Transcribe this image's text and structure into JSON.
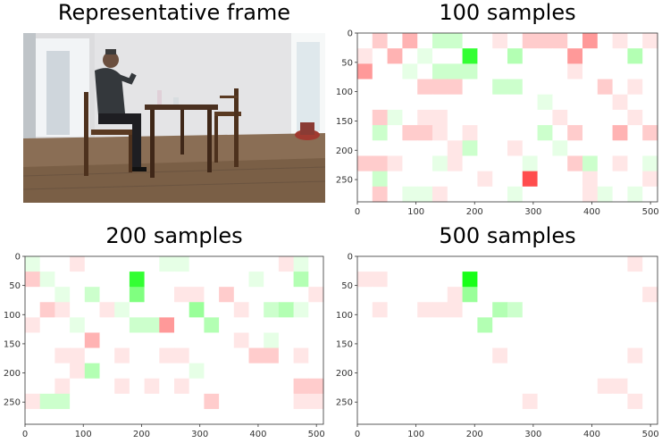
{
  "titles": {
    "frame": "Representative frame",
    "p100": "100 samples",
    "p200": "200 samples",
    "p500": "500 samples"
  },
  "colors": {
    "positive": "#00ff00",
    "negative": "#ff0000",
    "neutral": "#ffffff"
  },
  "chart_data": [
    {
      "type": "heatmap",
      "title": "100 samples",
      "x_range": [
        0,
        512
      ],
      "y_range": [
        0,
        288
      ],
      "x_ticks": [
        "0",
        "100",
        "200",
        "300",
        "400",
        "500"
      ],
      "y_ticks": [
        "0",
        "50",
        "100",
        "150",
        "200",
        "250"
      ],
      "grid_rows": 11,
      "grid_cols": 20,
      "values": [
        [
          0,
          -0.2,
          0,
          -0.3,
          0,
          0.2,
          0.2,
          0,
          0,
          -0.1,
          0,
          -0.2,
          -0.2,
          -0.2,
          0,
          -0.4,
          0,
          -0.1,
          0,
          -0.1
        ],
        [
          -0.1,
          0,
          -0.3,
          0,
          0.1,
          0,
          0,
          0.8,
          0,
          0,
          0.3,
          0,
          0,
          0,
          -0.4,
          0,
          0,
          0,
          0.3,
          0
        ],
        [
          -0.4,
          0,
          0,
          0.1,
          0,
          0.2,
          0.2,
          0.2,
          0,
          0,
          0,
          0,
          0,
          0,
          -0.1,
          0,
          0,
          0,
          0,
          0
        ],
        [
          0,
          0,
          0,
          0,
          -0.2,
          -0.2,
          -0.2,
          0,
          0,
          0.2,
          0.2,
          0,
          0,
          0,
          0,
          0,
          -0.2,
          0,
          -0.1,
          0
        ],
        [
          0,
          0,
          0,
          0,
          0,
          0,
          0,
          0,
          0,
          0,
          0,
          0,
          0.1,
          0,
          0,
          0,
          0,
          -0.1,
          0,
          0
        ],
        [
          0,
          -0.2,
          0.1,
          0,
          -0.1,
          -0.1,
          0,
          0,
          0,
          0,
          0,
          0,
          0,
          -0.1,
          0,
          0,
          0,
          0,
          -0.1,
          0
        ],
        [
          0,
          0.2,
          0,
          -0.2,
          -0.2,
          -0.1,
          0,
          -0.1,
          0,
          0,
          0,
          0,
          0.2,
          0,
          -0.2,
          0,
          0,
          -0.3,
          0,
          -0.2
        ],
        [
          0,
          0,
          0,
          0,
          0,
          0,
          -0.1,
          0.2,
          0,
          0,
          -0.1,
          0,
          0,
          0.1,
          0,
          0,
          0,
          0,
          0,
          0
        ],
        [
          -0.2,
          -0.2,
          -0.1,
          0,
          0,
          0.1,
          -0.1,
          0,
          0,
          0,
          0,
          0.1,
          0,
          0,
          -0.2,
          0.2,
          0,
          -0.1,
          0,
          0.1
        ],
        [
          0,
          0.2,
          0,
          0,
          0,
          0,
          0,
          0,
          -0.1,
          0,
          0,
          -0.7,
          0,
          0,
          0,
          -0.1,
          0,
          0,
          0,
          -0.1
        ],
        [
          0,
          -0.2,
          0,
          0.1,
          0.1,
          -0.1,
          0,
          0,
          0,
          0,
          0.1,
          0,
          0,
          0,
          0,
          -0.1,
          0.1,
          0,
          0.1,
          0
        ]
      ]
    },
    {
      "type": "heatmap",
      "title": "200 samples",
      "x_range": [
        0,
        512
      ],
      "y_range": [
        0,
        288
      ],
      "x_ticks": [
        "0",
        "100",
        "200",
        "300",
        "400",
        "500"
      ],
      "y_ticks": [
        "0",
        "50",
        "100",
        "150",
        "200",
        "250"
      ],
      "grid_rows": 11,
      "grid_cols": 20,
      "values": [
        [
          0.1,
          0,
          0,
          -0.1,
          0,
          0,
          0,
          0,
          0,
          0.1,
          0.1,
          0,
          0,
          0,
          0,
          0,
          0,
          -0.1,
          0.1,
          0
        ],
        [
          -0.2,
          0.1,
          0,
          0,
          0,
          0,
          0,
          0.8,
          0,
          0,
          0,
          0,
          0,
          0,
          0,
          0.1,
          0,
          0,
          0.3,
          0
        ],
        [
          0,
          0,
          0.1,
          0,
          0.2,
          0,
          0,
          0.5,
          0,
          0,
          -0.1,
          -0.1,
          0,
          -0.2,
          0,
          0,
          0,
          0,
          0,
          -0.1
        ],
        [
          0,
          -0.2,
          -0.1,
          0,
          0,
          -0.1,
          0.1,
          0,
          0,
          0,
          0,
          0.4,
          0,
          0,
          -0.1,
          0,
          0.2,
          0.3,
          0.1,
          0
        ],
        [
          -0.1,
          0,
          0,
          0.1,
          0,
          0,
          0,
          0.2,
          0.2,
          -0.4,
          0,
          0,
          0.3,
          0,
          0,
          0,
          0,
          0,
          0,
          0
        ],
        [
          0,
          0,
          0,
          0,
          -0.3,
          0,
          0,
          0,
          0,
          0,
          0,
          0,
          0,
          0,
          -0.1,
          0,
          0.1,
          0,
          0,
          0
        ],
        [
          0,
          0,
          -0.1,
          -0.1,
          0,
          0,
          -0.1,
          0,
          0,
          -0.1,
          -0.1,
          0,
          0,
          0,
          0,
          -0.2,
          -0.2,
          0,
          -0.1,
          0
        ],
        [
          0,
          0,
          0,
          -0.1,
          0.3,
          0,
          0,
          0,
          0,
          0,
          0,
          0.1,
          0,
          0,
          0,
          0,
          0,
          0,
          0,
          0
        ],
        [
          0,
          0,
          -0.1,
          0,
          0,
          0,
          -0.1,
          0,
          -0.1,
          0,
          -0.1,
          0,
          0,
          0,
          0,
          0,
          0,
          0,
          -0.2,
          -0.2
        ],
        [
          -0.1,
          0.2,
          0.2,
          0,
          0,
          0,
          0,
          0,
          0,
          0,
          0,
          0,
          -0.2,
          0,
          0,
          0,
          0,
          0,
          -0.1,
          -0.1
        ],
        [
          0,
          0,
          0,
          0,
          0,
          0,
          0,
          0,
          0,
          0,
          0,
          0,
          0,
          0,
          0,
          0,
          0,
          0,
          0,
          0
        ]
      ]
    },
    {
      "type": "heatmap",
      "title": "500 samples",
      "x_range": [
        0,
        512
      ],
      "y_range": [
        0,
        288
      ],
      "x_ticks": [
        "0",
        "100",
        "200",
        "300",
        "400",
        "500"
      ],
      "y_ticks": [
        "0",
        "50",
        "100",
        "150",
        "200",
        "250"
      ],
      "grid_rows": 11,
      "grid_cols": 20,
      "values": [
        [
          0,
          0,
          0,
          0,
          0,
          0,
          0,
          0,
          0,
          0,
          0,
          0,
          0,
          0,
          0,
          0,
          0,
          0,
          -0.1,
          0
        ],
        [
          -0.1,
          -0.1,
          0,
          0,
          0,
          0,
          0,
          0.9,
          0,
          0,
          0,
          0,
          0,
          0,
          0,
          0,
          0,
          0,
          0,
          0
        ],
        [
          0,
          0,
          0,
          0,
          0,
          0,
          -0.1,
          0.4,
          0,
          0,
          0,
          0,
          0,
          0,
          0,
          0,
          0,
          0,
          0,
          -0.1
        ],
        [
          0,
          -0.1,
          0,
          0,
          -0.1,
          -0.1,
          -0.1,
          0,
          0,
          0.3,
          0.2,
          0,
          0,
          0,
          0,
          0,
          0,
          0,
          0,
          0
        ],
        [
          0,
          0,
          0,
          0,
          0,
          0,
          0,
          0,
          0.3,
          0,
          0,
          0,
          0,
          0,
          0,
          0,
          0,
          0,
          0,
          0
        ],
        [
          0,
          0,
          0,
          0,
          0,
          0,
          0,
          0,
          0,
          0,
          0,
          0,
          0,
          0,
          0,
          0,
          0,
          0,
          0,
          0
        ],
        [
          0,
          0,
          0,
          0,
          0,
          0,
          0,
          0,
          0,
          -0.1,
          0,
          0,
          0,
          0,
          0,
          0,
          0,
          0,
          -0.1,
          0
        ],
        [
          0,
          0,
          0,
          0,
          0,
          0,
          0,
          0,
          0,
          0,
          0,
          0,
          0,
          0,
          0,
          0,
          0,
          0,
          0,
          0
        ],
        [
          0,
          0,
          0,
          0,
          0,
          0,
          0,
          0,
          0,
          0,
          0,
          0,
          0,
          0,
          0,
          0,
          -0.1,
          -0.1,
          0,
          0
        ],
        [
          0,
          0,
          0,
          0,
          0,
          0,
          0,
          0,
          0,
          0,
          0,
          -0.1,
          0,
          0,
          0,
          0,
          0,
          0,
          -0.1,
          0
        ],
        [
          0,
          0,
          0,
          0,
          0,
          0,
          0,
          0,
          0,
          0,
          0,
          0,
          0,
          0,
          0,
          0,
          0,
          0,
          0,
          0
        ]
      ]
    }
  ]
}
